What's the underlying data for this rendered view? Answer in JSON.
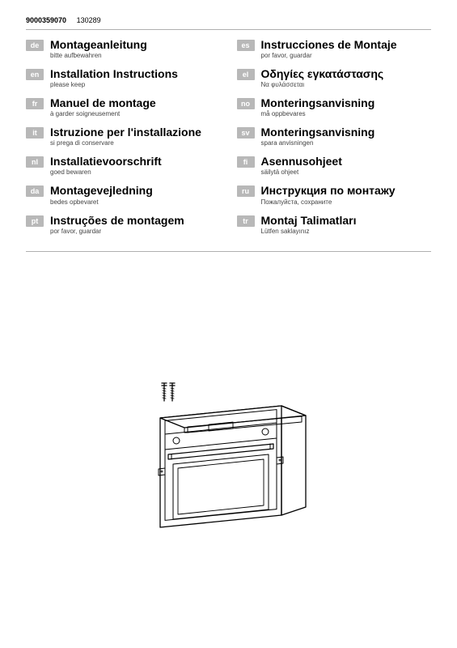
{
  "header": {
    "code1": "9000359070",
    "code2": "130289"
  },
  "left": [
    {
      "tag": "de",
      "title": "Montageanleitung",
      "sub": "bitte aufbewahren"
    },
    {
      "tag": "en",
      "title": "Installation Instructions",
      "sub": "please keep"
    },
    {
      "tag": "fr",
      "title": "Manuel de montage",
      "sub": "à garder soigneusement"
    },
    {
      "tag": "it",
      "title": "Istruzione per l'installazione",
      "sub": "si prega di conservare"
    },
    {
      "tag": "nl",
      "title": "Installatievoorschrift",
      "sub": "goed bewaren"
    },
    {
      "tag": "da",
      "title": "Montagevejledning",
      "sub": "bedes opbevaret"
    },
    {
      "tag": "pt",
      "title": "Instruções de montagem",
      "sub": "por favor, guardar"
    }
  ],
  "right": [
    {
      "tag": "es",
      "title": "Instrucciones de Montaje",
      "sub": "por favor, guardar"
    },
    {
      "tag": "el",
      "title": "Οδηγίες εγκατάστασης",
      "sub": "Να φυλάσσεται"
    },
    {
      "tag": "no",
      "title": "Monteringsanvisning",
      "sub": "må oppbevares"
    },
    {
      "tag": "sv",
      "title": "Monteringsanvisning",
      "sub": "spara anvisningen"
    },
    {
      "tag": "fi",
      "title": "Asennusohjeet",
      "sub": "säilytä ohjeet"
    },
    {
      "tag": "ru",
      "title": "Инструкция по монтажу",
      "sub": "Пожалуйста, сохраните"
    },
    {
      "tag": "tr",
      "title": "Montaj Talimatları",
      "sub": "Lütfen saklayınız"
    }
  ],
  "illustration": {
    "type": "line-drawing",
    "description": "built-in-oven-with-two-screws",
    "stroke_color": "#000000",
    "stroke_width": 1.5,
    "fill_color": "#ffffff"
  }
}
